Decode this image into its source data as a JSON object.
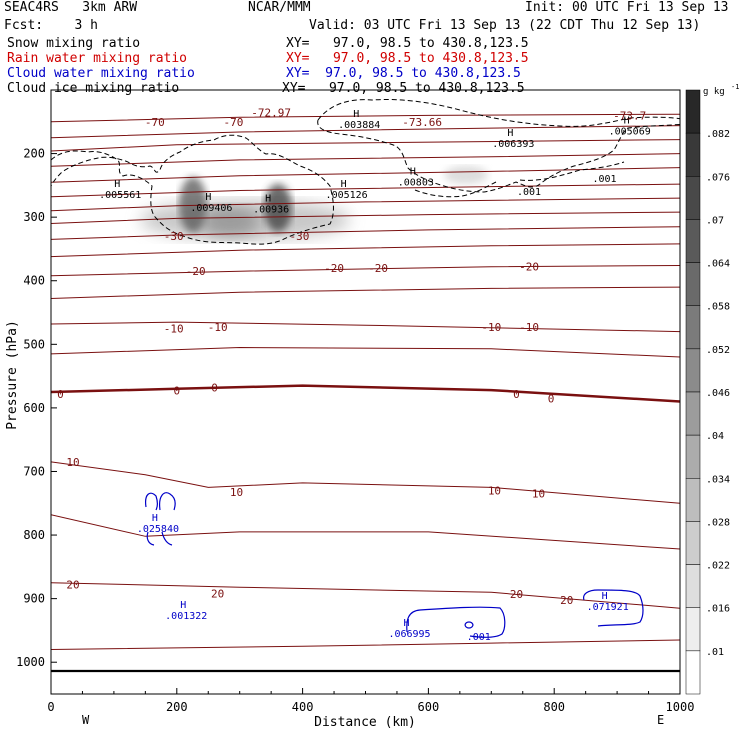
{
  "header": {
    "model": "SEAC4RS   3km ARW",
    "fcst": "Fcst:    3 h",
    "org": "NCAR/MMM",
    "init": "Init: 00 UTC Fri 13 Sep 13",
    "valid": "Valid: 03 UTC Fri 13 Sep 13 (22 CDT Thu 12 Sep 13)",
    "fields": [
      {
        "name": "Snow mixing ratio",
        "xy": "XY=   97.0, 98.5 to 430.8,123.5",
        "color": "#000000"
      },
      {
        "name": "Rain water mixing ratio",
        "xy": "XY=   97.0, 98.5 to 430.8,123.5",
        "color": "#d00000"
      },
      {
        "name": "Cloud water mixing ratio",
        "xy": "XY=  97.0, 98.5 to 430.8,123.5",
        "color": "#0000c8"
      },
      {
        "name": "Cloud ice mixing ratio",
        "xy": "XY=   97.0, 98.5 to 430.8,123.5",
        "color": "#000000"
      }
    ]
  },
  "colorbar": {
    "unit": "g kg",
    "unit_exp": "-1",
    "labels": [
      ".082",
      ".076",
      ".07",
      ".064",
      ".058",
      ".052",
      ".046",
      ".04",
      ".034",
      ".028",
      ".022",
      ".016",
      ".01"
    ]
  },
  "chart_data": {
    "type": "heatmap",
    "title": "",
    "xlabel": "Distance (km)",
    "ylabel": "Pressure (hPa)",
    "xlim": [
      0,
      1000
    ],
    "ylim": [
      1050,
      100
    ],
    "x_ticks": [
      0,
      200,
      400,
      600,
      800,
      1000
    ],
    "y_ticks": [
      200,
      300,
      400,
      500,
      600,
      700,
      800,
      900,
      1000
    ],
    "x_end_labels": {
      "left": "W",
      "right": "E"
    },
    "temperature_contour_labels": [
      {
        "text": "-70",
        "x": 165,
        "p": 150
      },
      {
        "text": "-70",
        "x": 290,
        "p": 150
      },
      {
        "text": "-72.97",
        "x": 350,
        "p": 135
      },
      {
        "text": "-73.66",
        "x": 590,
        "p": 150
      },
      {
        "text": "-73.7",
        "x": 920,
        "p": 140
      },
      {
        "text": "-30",
        "x": 195,
        "p": 330
      },
      {
        "text": "-30",
        "x": 395,
        "p": 330
      },
      {
        "text": "-20",
        "x": 230,
        "p": 385
      },
      {
        "text": "-20",
        "x": 450,
        "p": 380
      },
      {
        "text": "-20",
        "x": 520,
        "p": 380
      },
      {
        "text": "-20",
        "x": 760,
        "p": 378
      },
      {
        "text": "-10",
        "x": 195,
        "p": 475
      },
      {
        "text": "-10",
        "x": 265,
        "p": 473
      },
      {
        "text": "-10",
        "x": 700,
        "p": 473
      },
      {
        "text": "-10",
        "x": 760,
        "p": 473
      },
      {
        "text": "0",
        "x": 15,
        "p": 578
      },
      {
        "text": "0",
        "x": 200,
        "p": 573
      },
      {
        "text": "0",
        "x": 260,
        "p": 568
      },
      {
        "text": "0",
        "x": 740,
        "p": 578
      },
      {
        "text": "0",
        "x": 795,
        "p": 585
      },
      {
        "text": "10",
        "x": 35,
        "p": 685
      },
      {
        "text": "10",
        "x": 295,
        "p": 732
      },
      {
        "text": "10",
        "x": 705,
        "p": 730
      },
      {
        "text": "10",
        "x": 775,
        "p": 735
      },
      {
        "text": "20",
        "x": 35,
        "p": 878
      },
      {
        "text": "20",
        "x": 265,
        "p": 892
      },
      {
        "text": "20",
        "x": 740,
        "p": 893
      },
      {
        "text": "20",
        "x": 820,
        "p": 902
      }
    ],
    "snow_maxima": [
      {
        "value": ".005561",
        "x": 110,
        "p": 270
      },
      {
        "value": ".009406",
        "x": 255,
        "p": 290
      },
      {
        "value": ".00936",
        "x": 350,
        "p": 293
      },
      {
        "value": ".005126",
        "x": 470,
        "p": 270
      }
    ],
    "ice_maxima": [
      {
        "value": ".003884",
        "x": 490,
        "p": 160
      },
      {
        "value": ".00803",
        "x": 580,
        "p": 250
      },
      {
        "value": ".006393",
        "x": 735,
        "p": 190
      },
      {
        "value": ".005069",
        "x": 920,
        "p": 170
      },
      {
        "value": ".001",
        "x": 760,
        "p": 265
      },
      {
        "value": ".001",
        "x": 880,
        "p": 245
      }
    ],
    "cloud_water_maxima": [
      {
        "value": ".025840",
        "x": 170,
        "p": 795
      },
      {
        "value": ".001322",
        "x": 215,
        "p": 932
      },
      {
        "value": ".066995",
        "x": 570,
        "p": 960
      },
      {
        "value": ".001",
        "x": 680,
        "p": 965
      },
      {
        "value": ".071921",
        "x": 885,
        "p": 918
      }
    ],
    "maximum_marker": "H",
    "grid": false
  }
}
